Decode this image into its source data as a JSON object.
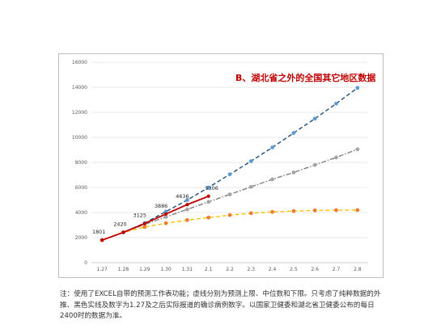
{
  "chart_data": {
    "type": "line",
    "title": "B、湖北省之外的全国其它地区数据",
    "categories": [
      "1.27",
      "1.28",
      "1.29",
      "1.30",
      "1.31",
      "2.1",
      "2.2",
      "2.3",
      "2.4",
      "2.5",
      "2.6",
      "2.7",
      "2.8"
    ],
    "ylim": [
      0,
      16000
    ],
    "yticks": [
      "0",
      "2000",
      "4000",
      "6000",
      "8000",
      "10000",
      "12000",
      "14000",
      "16000"
    ],
    "grid": true,
    "series": [
      {
        "style": "dashed",
        "color": "#1f4e79",
        "marker_color": "#5b9bd5",
        "values": [
          1801,
          2420,
          3160,
          4080,
          5000,
          6000,
          7050,
          8100,
          9200,
          10350,
          11500,
          12700,
          13950
        ]
      },
      {
        "style": "dash-dot",
        "color": "#7f7f7f",
        "marker_color": "#a5a5a5",
        "values": [
          1801,
          2420,
          3050,
          3650,
          4250,
          4850,
          5450,
          6050,
          6650,
          7200,
          7800,
          8400,
          9050
        ]
      },
      {
        "style": "dashed",
        "color": "#ffc000",
        "marker_color": "#ed7d31",
        "values": [
          1801,
          2420,
          2850,
          3150,
          3400,
          3600,
          3800,
          3950,
          4050,
          4120,
          4170,
          4190,
          4200
        ]
      },
      {
        "style": "solid",
        "color": "#c00000",
        "marker_color": "#c00000",
        "values": [
          1801,
          2420,
          3125,
          3886,
          4636,
          5306,
          null,
          null,
          null,
          null,
          null,
          null,
          null
        ]
      }
    ],
    "data_labels": [
      "1801",
      "2420",
      "3125",
      "3886",
      "4636",
      "5306"
    ]
  },
  "footnote": "注：使用了EXCEL自带的预测工作表功能；虚线分别为预测上限、中位数和下限。只考虑了纯粹数据的外推、黑色实线及数字为1.27及之后实际报道的确诊病例数字。以国家卫健委和湖北省卫健委公布的每日2400时的数据为准。"
}
